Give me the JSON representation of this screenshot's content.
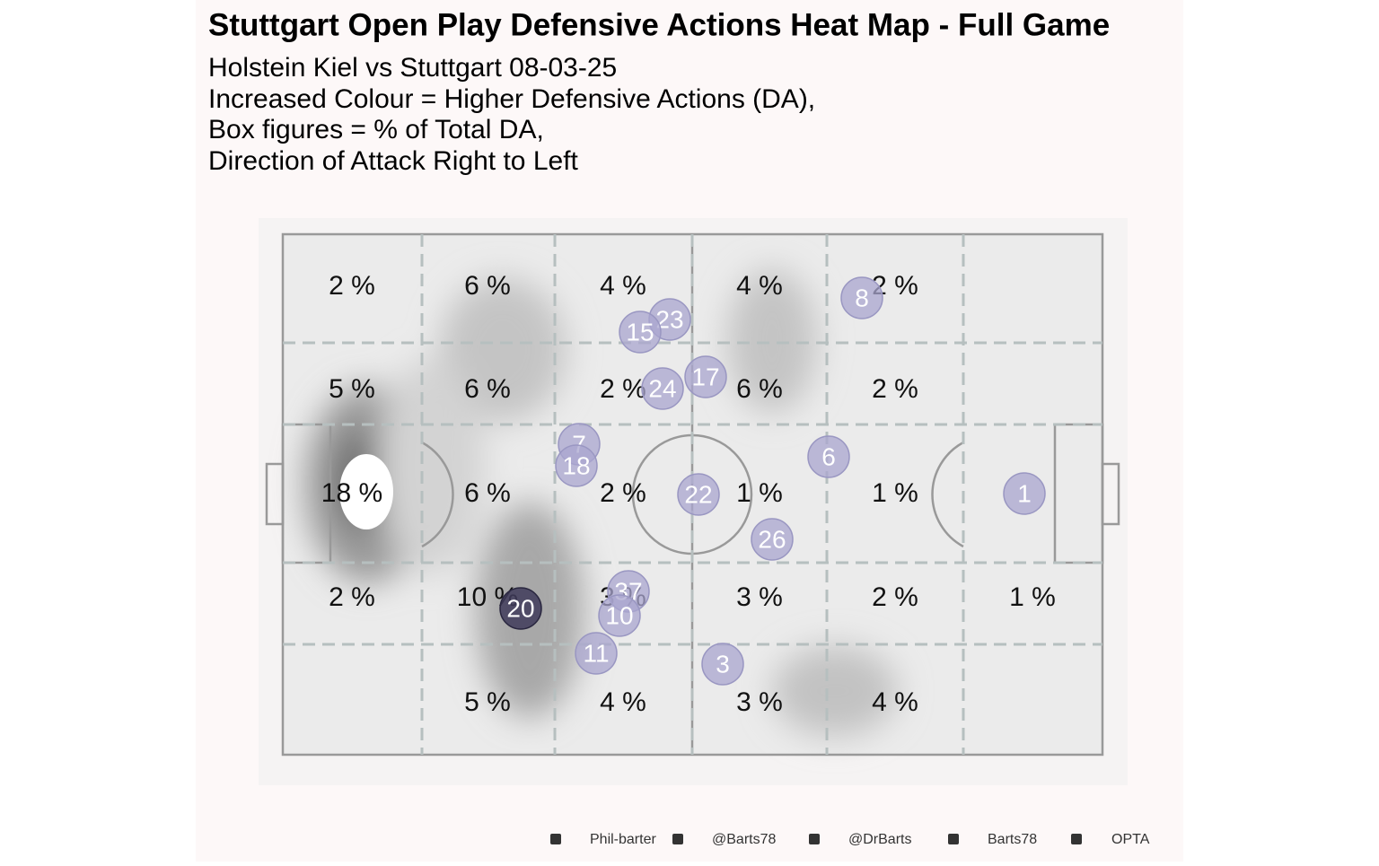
{
  "header": {
    "title": "Stuttgart  Open Play Defensive Actions Heat Map - Full Game",
    "subtitle": [
      "Holstein Kiel vs Stuttgart 08-03-25",
      "Increased Colour = Higher Defensive Actions (DA),",
      "Box figures = % of Total DA,",
      "Direction of Attack Right to Left"
    ]
  },
  "zones": {
    "rows": [
      [
        "2 %",
        "6 %",
        "4 %",
        "4 %",
        "2 %",
        null
      ],
      [
        "5 %",
        "6 %",
        "2 %",
        "6 %",
        "2 %",
        null
      ],
      [
        "18 %",
        "6 %",
        "2 %",
        "1 %",
        "1 %",
        null
      ],
      [
        "2 %",
        "10 %",
        "3 %",
        "3 %",
        "2 %",
        "1 %"
      ],
      [
        null,
        "5 %",
        "4 %",
        "3 %",
        "4 %",
        null
      ]
    ]
  },
  "players": [
    "8",
    "23",
    "15",
    "17",
    "24",
    "7",
    "18",
    "6",
    "22",
    "1",
    "26",
    "37",
    "10",
    "20",
    "11",
    "3"
  ],
  "footer": [
    "Phil-barter",
    "@Barts78",
    "@DrBarts",
    "Barts78",
    "OPTA"
  ]
}
